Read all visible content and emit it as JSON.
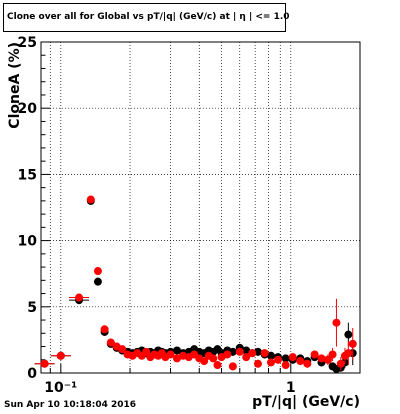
{
  "header": {
    "title": "Clone  over all for Global vs pT/|q| (GeV/c) at |  η | <= 1.0"
  },
  "footer": {
    "timestamp": "Sun Apr 10 10:18:04 2016"
  },
  "chart_data": {
    "type": "scatter",
    "title": "Clone  over all for Global vs pT/|q| (GeV/c) at |  η | <= 1.0",
    "xlabel": "pT/|q| (GeV/c)",
    "ylabel": "CloneA (%)",
    "xscale": "log",
    "xlim": [
      0.082,
      2.0
    ],
    "ylim": [
      0,
      25
    ],
    "yticks": [
      0,
      5,
      10,
      15,
      20,
      25
    ],
    "xtick_labels": [
      {
        "value": 0.1,
        "label": "10⁻¹"
      },
      {
        "value": 1,
        "label": "1"
      }
    ],
    "grid": true,
    "series": [
      {
        "color": "#000000",
        "points": [
          [
            0.085,
            0.7,
            0.15
          ],
          [
            0.1,
            1.3,
            0.15
          ],
          [
            0.12,
            5.5,
            0.3
          ],
          [
            0.135,
            13.0,
            0.3
          ],
          [
            0.145,
            6.9,
            0.3
          ],
          [
            0.155,
            3.1,
            0.2
          ],
          [
            0.165,
            2.2,
            0.2
          ],
          [
            0.175,
            1.9,
            0.2
          ],
          [
            0.185,
            1.7,
            0.2
          ],
          [
            0.195,
            1.6,
            0.2
          ],
          [
            0.205,
            1.5,
            0.2
          ],
          [
            0.215,
            1.6,
            0.2
          ],
          [
            0.225,
            1.7,
            0.2
          ],
          [
            0.235,
            1.5,
            0.2
          ],
          [
            0.245,
            1.6,
            0.2
          ],
          [
            0.255,
            1.5,
            0.2
          ],
          [
            0.265,
            1.7,
            0.2
          ],
          [
            0.275,
            1.6,
            0.2
          ],
          [
            0.285,
            1.5,
            0.2
          ],
          [
            0.3,
            1.6,
            0.2
          ],
          [
            0.32,
            1.7,
            0.2
          ],
          [
            0.34,
            1.5,
            0.2
          ],
          [
            0.36,
            1.6,
            0.2
          ],
          [
            0.38,
            1.8,
            0.25
          ],
          [
            0.4,
            1.6,
            0.25
          ],
          [
            0.42,
            1.5,
            0.25
          ],
          [
            0.44,
            1.7,
            0.25
          ],
          [
            0.46,
            1.6,
            0.25
          ],
          [
            0.48,
            1.8,
            0.3
          ],
          [
            0.5,
            1.5,
            0.3
          ],
          [
            0.53,
            1.7,
            0.3
          ],
          [
            0.56,
            1.6,
            0.3
          ],
          [
            0.6,
            1.9,
            0.3
          ],
          [
            0.64,
            1.7,
            0.3
          ],
          [
            0.68,
            1.5,
            0.3
          ],
          [
            0.72,
            1.6,
            0.3
          ],
          [
            0.77,
            1.4,
            0.3
          ],
          [
            0.82,
            1.3,
            0.3
          ],
          [
            0.88,
            1.2,
            0.3
          ],
          [
            0.95,
            1.1,
            0.3
          ],
          [
            1.02,
            1.0,
            0.3
          ],
          [
            1.1,
            1.1,
            0.3
          ],
          [
            1.18,
            0.9,
            0.3
          ],
          [
            1.27,
            1.2,
            0.3
          ],
          [
            1.36,
            0.8,
            0.3
          ],
          [
            1.45,
            1.0,
            0.3
          ],
          [
            1.52,
            0.5,
            0.3
          ],
          [
            1.58,
            0.3,
            0.3
          ],
          [
            1.65,
            0.4,
            0.3
          ],
          [
            1.72,
            0.8,
            0.4
          ],
          [
            1.78,
            2.9,
            0.9
          ],
          [
            1.86,
            1.5,
            0.9
          ]
        ]
      },
      {
        "color": "#ff0000",
        "points": [
          [
            0.085,
            0.7,
            0.15
          ],
          [
            0.1,
            1.3,
            0.15
          ],
          [
            0.12,
            5.7,
            0.3
          ],
          [
            0.135,
            13.1,
            0.3
          ],
          [
            0.145,
            7.7,
            0.3
          ],
          [
            0.155,
            3.3,
            0.2
          ],
          [
            0.165,
            2.3,
            0.2
          ],
          [
            0.175,
            2.0,
            0.2
          ],
          [
            0.185,
            1.8,
            0.2
          ],
          [
            0.195,
            1.4,
            0.2
          ],
          [
            0.205,
            1.3,
            0.2
          ],
          [
            0.215,
            1.5,
            0.2
          ],
          [
            0.225,
            1.3,
            0.2
          ],
          [
            0.235,
            1.6,
            0.2
          ],
          [
            0.245,
            1.2,
            0.2
          ],
          [
            0.255,
            1.4,
            0.2
          ],
          [
            0.265,
            1.3,
            0.2
          ],
          [
            0.275,
            1.5,
            0.2
          ],
          [
            0.285,
            1.2,
            0.2
          ],
          [
            0.3,
            1.4,
            0.2
          ],
          [
            0.32,
            1.1,
            0.2
          ],
          [
            0.34,
            1.3,
            0.2
          ],
          [
            0.36,
            1.2,
            0.2
          ],
          [
            0.38,
            1.4,
            0.25
          ],
          [
            0.4,
            1.1,
            0.25
          ],
          [
            0.42,
            0.9,
            0.25
          ],
          [
            0.44,
            1.3,
            0.25
          ],
          [
            0.46,
            1.1,
            0.25
          ],
          [
            0.48,
            0.6,
            0.3
          ],
          [
            0.5,
            1.2,
            0.3
          ],
          [
            0.53,
            1.4,
            0.3
          ],
          [
            0.56,
            0.5,
            0.3
          ],
          [
            0.6,
            1.6,
            0.3
          ],
          [
            0.64,
            1.2,
            0.3
          ],
          [
            0.68,
            1.5,
            0.3
          ],
          [
            0.72,
            0.7,
            0.3
          ],
          [
            0.77,
            1.5,
            0.3
          ],
          [
            0.82,
            0.8,
            0.3
          ],
          [
            0.88,
            1.0,
            0.3
          ],
          [
            0.95,
            0.6,
            0.3
          ],
          [
            1.02,
            1.2,
            0.3
          ],
          [
            1.1,
            0.9,
            0.3
          ],
          [
            1.18,
            0.7,
            0.3
          ],
          [
            1.27,
            1.4,
            0.3
          ],
          [
            1.36,
            1.1,
            0.3
          ],
          [
            1.45,
            1.0,
            0.4
          ],
          [
            1.52,
            1.4,
            0.5
          ],
          [
            1.58,
            3.8,
            1.8
          ],
          [
            1.65,
            0.7,
            0.5
          ],
          [
            1.72,
            1.3,
            0.6
          ],
          [
            1.78,
            1.5,
            0.9
          ],
          [
            1.86,
            2.2,
            1.2
          ]
        ]
      }
    ]
  }
}
